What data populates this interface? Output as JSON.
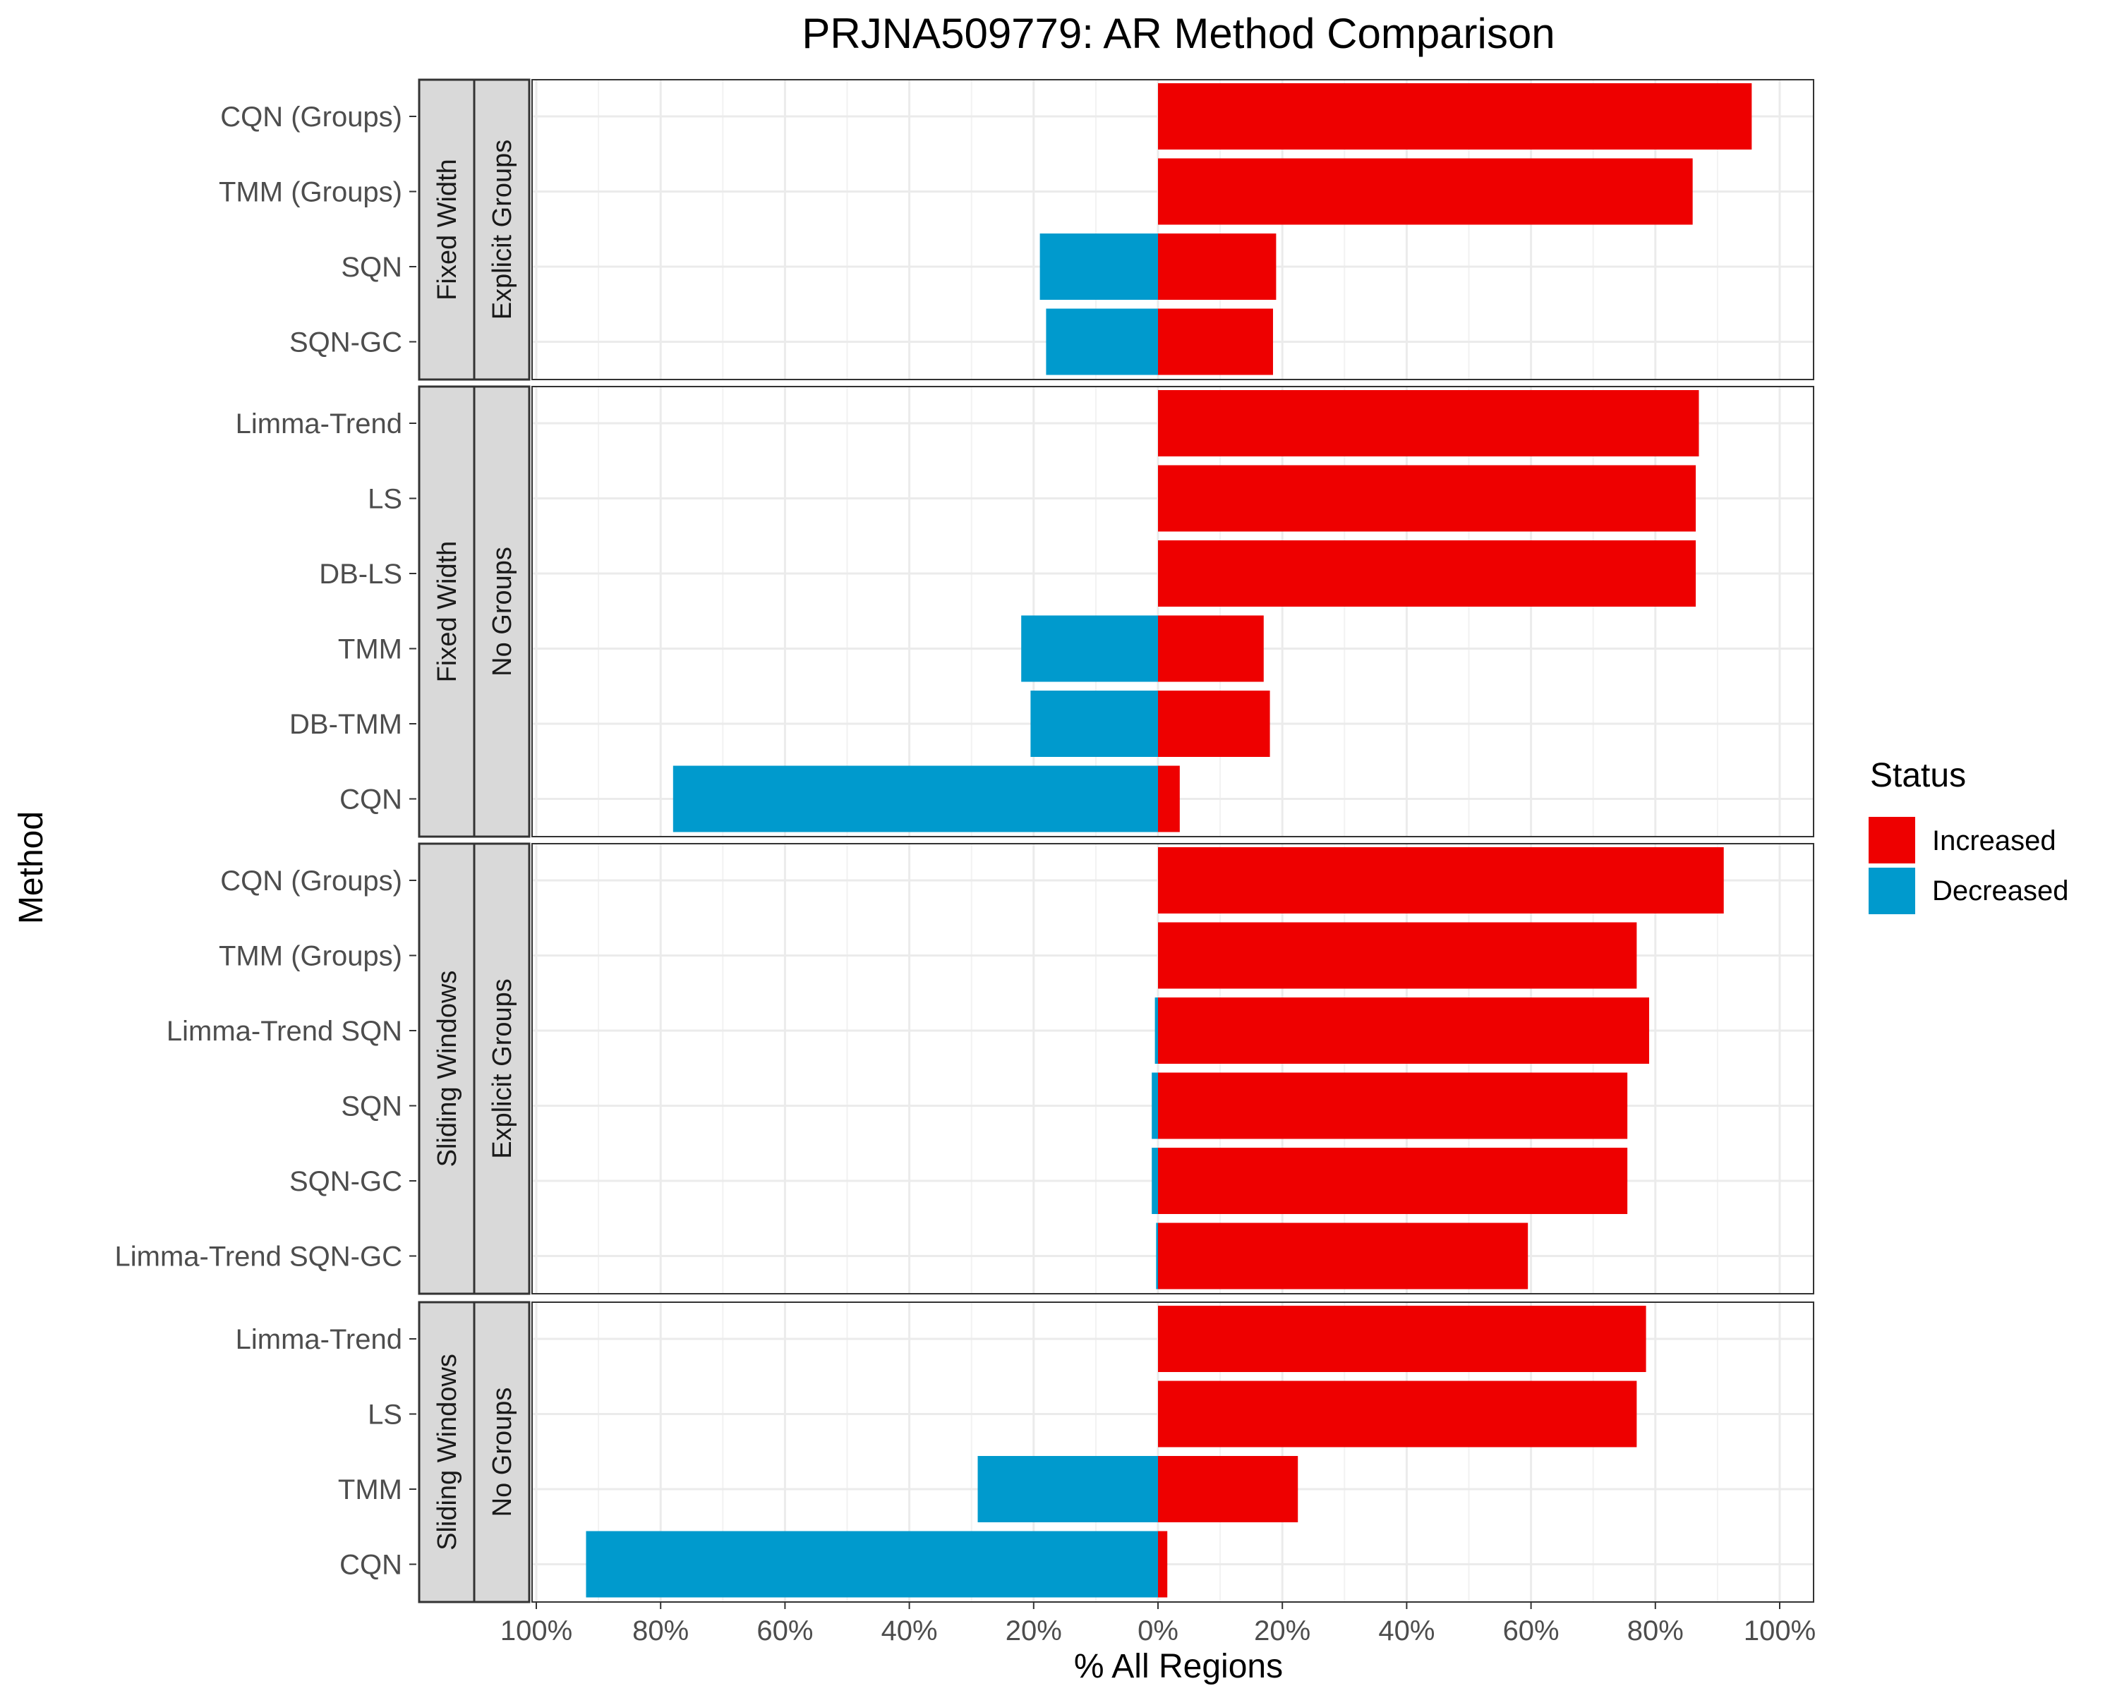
{
  "chart_data": {
    "type": "bar",
    "orientation": "horizontal-diverging",
    "title": "PRJNA509779: AR Method Comparison",
    "xlabel": "% All Regions",
    "ylabel": "Method",
    "xlim": [
      -100,
      100
    ],
    "x_ticks": [
      -100,
      -80,
      -60,
      -40,
      -20,
      0,
      20,
      40,
      60,
      80,
      100
    ],
    "x_tick_labels": [
      "100%",
      "80%",
      "60%",
      "40%",
      "20%",
      "0%",
      "20%",
      "40%",
      "60%",
      "80%",
      "100%"
    ],
    "grid": true,
    "legend": {
      "title": "Status",
      "position": "right",
      "entries": [
        {
          "label": "Increased",
          "color": "#EE0000"
        },
        {
          "label": "Decreased",
          "color": "#009ACD"
        }
      ]
    },
    "colors": {
      "increased": "#EE0000",
      "decreased": "#009ACD"
    },
    "panels": [
      {
        "strip_outer": "Fixed Width",
        "strip_inner": "Explicit Groups",
        "rows": [
          {
            "method": "CQN (Groups)",
            "increased": 95.5,
            "decreased": 0
          },
          {
            "method": "TMM (Groups)",
            "increased": 86,
            "decreased": 0
          },
          {
            "method": "SQN",
            "increased": 19,
            "decreased": 19
          },
          {
            "method": "SQN-GC",
            "increased": 18.5,
            "decreased": 18
          }
        ]
      },
      {
        "strip_outer": "Fixed Width",
        "strip_inner": "No Groups",
        "rows": [
          {
            "method": "Limma-Trend",
            "increased": 87,
            "decreased": 0
          },
          {
            "method": "LS",
            "increased": 86.5,
            "decreased": 0
          },
          {
            "method": "DB-LS",
            "increased": 86.5,
            "decreased": 0
          },
          {
            "method": "TMM",
            "increased": 17,
            "decreased": 22
          },
          {
            "method": "DB-TMM",
            "increased": 18,
            "decreased": 20.5
          },
          {
            "method": "CQN",
            "increased": 3.5,
            "decreased": 78
          }
        ]
      },
      {
        "strip_outer": "Sliding Windows",
        "strip_inner": "Explicit Groups",
        "rows": [
          {
            "method": "CQN (Groups)",
            "increased": 91,
            "decreased": 0
          },
          {
            "method": "TMM (Groups)",
            "increased": 77,
            "decreased": 0
          },
          {
            "method": "Limma-Trend SQN",
            "increased": 79,
            "decreased": 0.5
          },
          {
            "method": "SQN",
            "increased": 75.5,
            "decreased": 1
          },
          {
            "method": "SQN-GC",
            "increased": 75.5,
            "decreased": 1
          },
          {
            "method": "Limma-Trend SQN-GC",
            "increased": 59.5,
            "decreased": 0.3
          }
        ]
      },
      {
        "strip_outer": "Sliding Windows",
        "strip_inner": "No Groups",
        "rows": [
          {
            "method": "Limma-Trend",
            "increased": 78.5,
            "decreased": 0
          },
          {
            "method": "LS",
            "increased": 77,
            "decreased": 0
          },
          {
            "method": "TMM",
            "increased": 22.5,
            "decreased": 29
          },
          {
            "method": "CQN",
            "increased": 1.5,
            "decreased": 92
          }
        ]
      }
    ]
  }
}
